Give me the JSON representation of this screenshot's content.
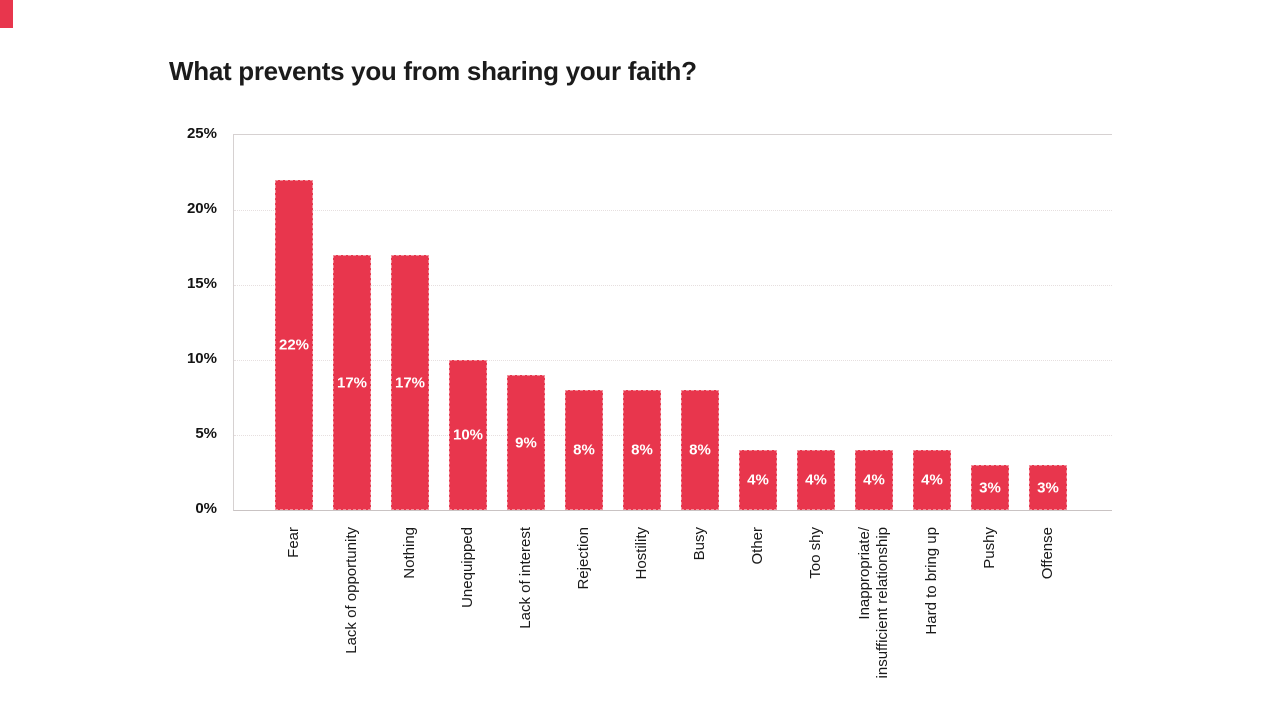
{
  "decorations": {
    "corner_mark_color": "#e8364d"
  },
  "chart_data": {
    "type": "bar",
    "title": "What prevents you from sharing your faith?",
    "categories": [
      "Fear",
      "Lack of opportunity",
      "Nothing",
      "Unequipped",
      "Lack of interest",
      "Rejection",
      "Hostility",
      "Busy",
      "Other",
      "Too shy",
      "Inappropriate/\ninsufficient relationship",
      "Hard to bring up",
      "Pushy",
      "Offense"
    ],
    "values": [
      22,
      17,
      17,
      10,
      9,
      8,
      8,
      8,
      4,
      4,
      4,
      4,
      3,
      3
    ],
    "bar_labels": [
      "22%",
      "17%",
      "17%",
      "10%",
      "9%",
      "8%",
      "8%",
      "8%",
      "4%",
      "4%",
      "4%",
      "4%",
      "3%",
      "3%"
    ],
    "xlabel": "",
    "ylabel": "",
    "ylim": [
      0,
      25
    ],
    "yticks": [
      25,
      20,
      15,
      10,
      5,
      0
    ],
    "ytick_labels": [
      "25%",
      "20%",
      "15%",
      "10%",
      "5%",
      "0%"
    ],
    "grid": true,
    "legend": false,
    "x_tick_rotation_deg": 90,
    "bar_color": "#e8364d",
    "bar_label_color": "#ffffff",
    "title_color": "#1b1b1b",
    "axis_text_color": "#1a1a1a"
  }
}
